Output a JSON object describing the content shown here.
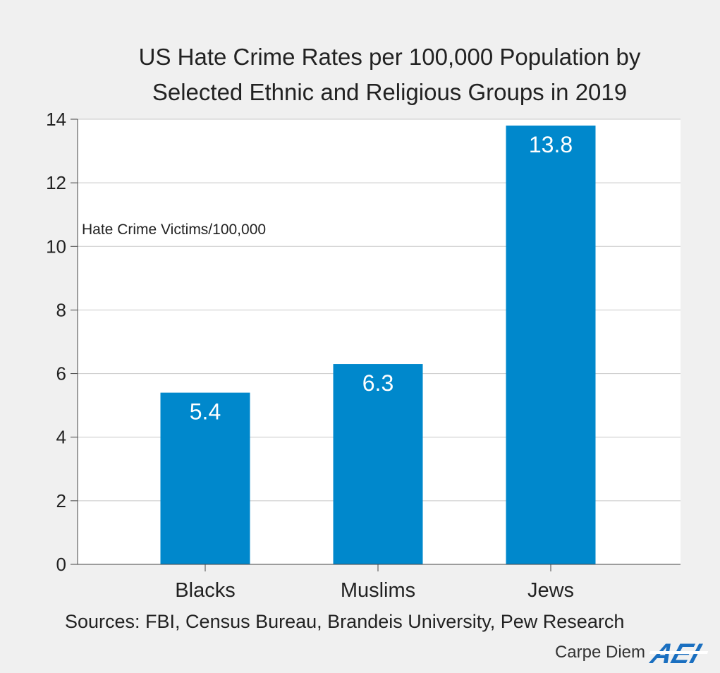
{
  "chart_data": {
    "type": "bar",
    "title_lines": [
      "US Hate Crime Rates per 100,000 Population by",
      "Selected Ethnic and Religious Groups in 2019"
    ],
    "ylabel": "Hate Crime Victims/100,000",
    "categories": [
      "Blacks",
      "Muslims",
      "Jews"
    ],
    "values": [
      5.4,
      6.3,
      13.8
    ],
    "data_labels": [
      "5.4",
      "6.3",
      "13.8"
    ],
    "ylim": [
      0,
      14
    ],
    "yticks": [
      0,
      2,
      4,
      6,
      8,
      10,
      12,
      14
    ],
    "grid": true,
    "bar_color": "#0088cc"
  },
  "sources": "Sources: FBI, Census Bureau, Brandeis University, Pew Research",
  "brand": {
    "text": "Carpe Diem",
    "logo_text": "AEI",
    "logo_color": "#1a6fc0"
  }
}
